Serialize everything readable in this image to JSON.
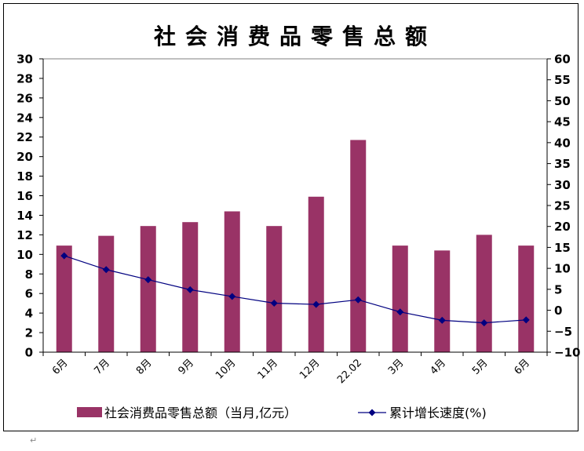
{
  "chart_data": {
    "type": "bar",
    "title": "社会消费品零售总额",
    "categories": [
      "6月",
      "7月",
      "8月",
      "9月",
      "10月",
      "11月",
      "12月",
      "22.02",
      "3月",
      "4月",
      "5月",
      "6月"
    ],
    "series": [
      {
        "name": "社会消费品零售总额（当月,亿元）",
        "type": "bar",
        "axis": "left",
        "color": "#993366",
        "values": [
          10.9,
          11.9,
          12.9,
          13.3,
          14.4,
          12.9,
          15.9,
          21.7,
          10.9,
          10.4,
          12.0,
          10.9
        ]
      },
      {
        "name": "累计增长速度(%)",
        "type": "line",
        "axis": "right",
        "color": "#000080",
        "values": [
          13.0,
          9.7,
          7.3,
          4.9,
          3.3,
          1.7,
          1.4,
          2.5,
          -0.4,
          -2.4,
          -3.0,
          -2.3
        ]
      }
    ],
    "y_left": {
      "ylim": [
        0,
        30
      ],
      "ticks": [
        "30",
        "28",
        "26",
        "24",
        "22",
        "20",
        "18",
        "16",
        "14",
        "12",
        "10",
        "8",
        "6",
        "4",
        "2",
        "0"
      ]
    },
    "y_right": {
      "ylim": [
        -10,
        60
      ],
      "ticks": [
        "60",
        "55",
        "50",
        "45",
        "40",
        "35",
        "30",
        "25",
        "20",
        "15",
        "10",
        "5",
        "0",
        "−5",
        "−10"
      ]
    },
    "grid": false,
    "legend_position": "bottom"
  },
  "page": {
    "paragraph_mark": "↵"
  }
}
